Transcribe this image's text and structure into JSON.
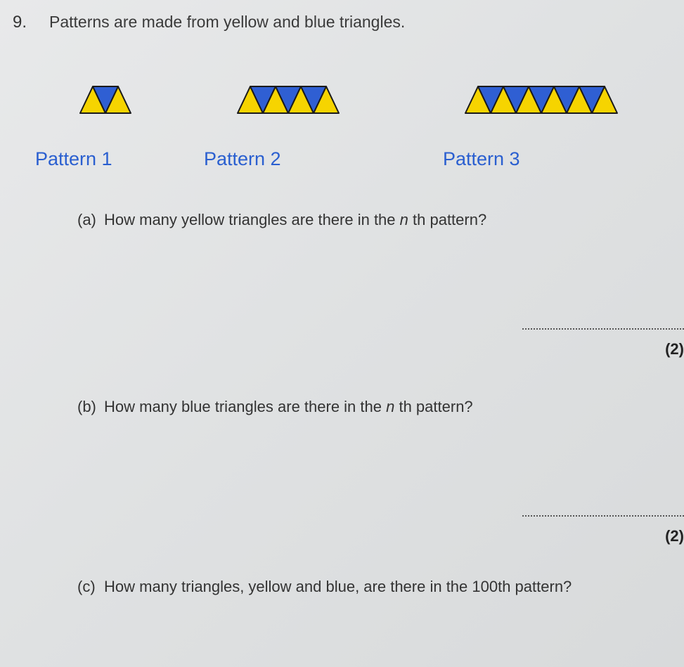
{
  "question": {
    "number": "9.",
    "prompt": "Patterns are made from yellow and blue triangles."
  },
  "patterns": {
    "labels": [
      "Pattern 1",
      "Pattern 2",
      "Pattern 3"
    ],
    "label_color": "#2a5fd0",
    "label_fontsize": 27,
    "colors": {
      "yellow": "#f6d400",
      "blue": "#2f5fd3",
      "outline": "#1a1a1a"
    },
    "triangle": {
      "base": 36,
      "height": 38,
      "stroke_width": 2
    },
    "data": [
      {
        "name": "pattern-1",
        "yellow_up": 2,
        "blue_down": 1
      },
      {
        "name": "pattern-2",
        "yellow_up": 4,
        "blue_down": 3
      },
      {
        "name": "pattern-3",
        "yellow_up": 6,
        "blue_down": 5
      }
    ]
  },
  "subquestions": {
    "a": {
      "letter": "(a)",
      "text_pre": "How many yellow triangles are there in the  ",
      "var": "n",
      "text_suffix": " th  pattern?",
      "marks": "(2)"
    },
    "b": {
      "letter": "(b)",
      "text_pre": "How many blue triangles are there in the  ",
      "var": "n",
      "text_suffix": " th  pattern?",
      "marks": "(2)"
    },
    "c": {
      "letter": "(c)",
      "text": "How many triangles, yellow and blue, are there in the 100th  pattern?"
    }
  }
}
